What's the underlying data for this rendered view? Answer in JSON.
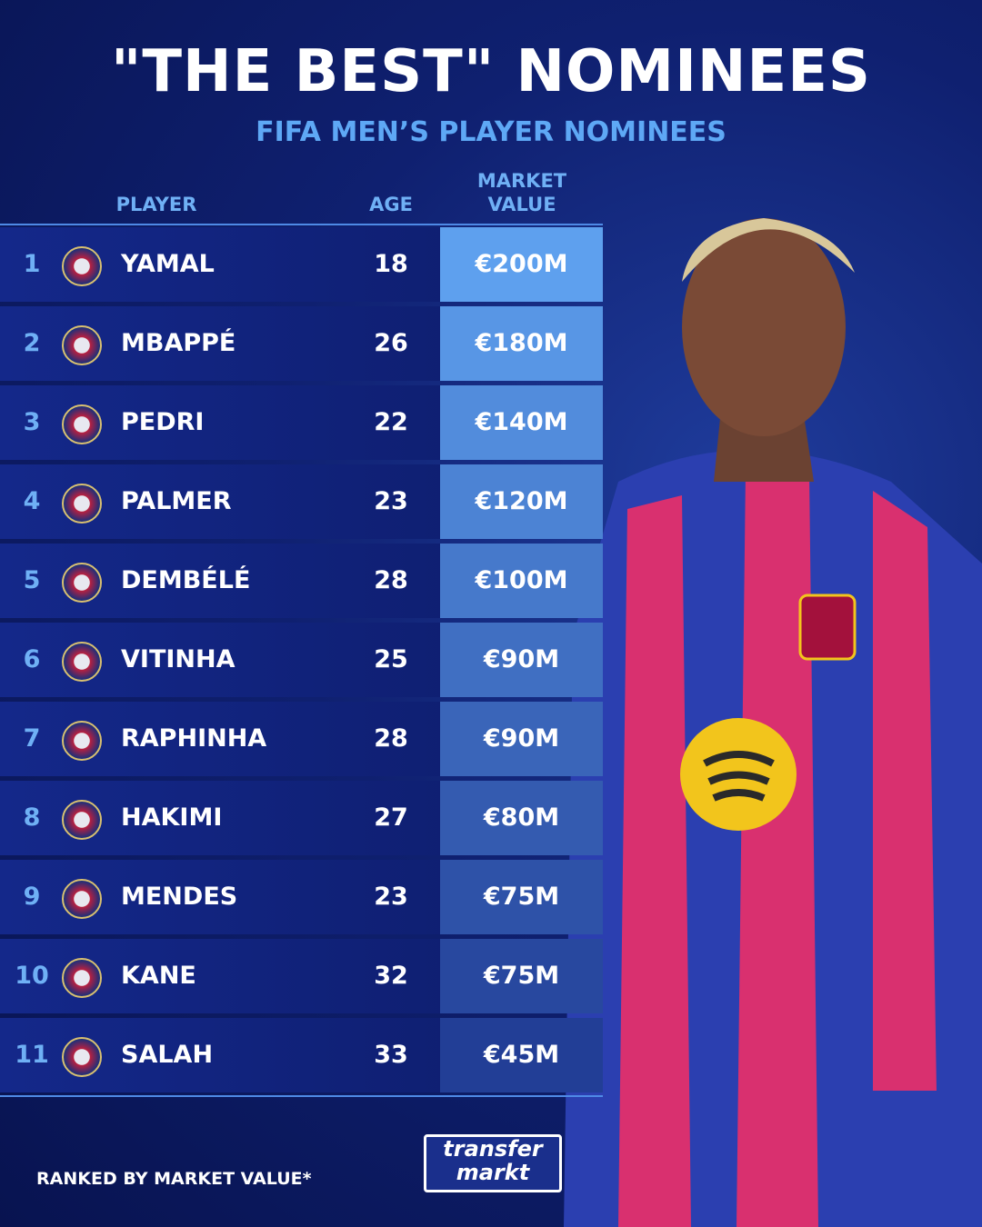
{
  "header": {
    "title": "\"THE BEST\" NOMINEES",
    "subtitle": "FIFA MEN’S PLAYER NOMINEES"
  },
  "table": {
    "columns": [
      "PLAYER",
      "AGE",
      "MARKET VALUE"
    ],
    "rows": [
      [
        "1",
        "YAMAL",
        "18",
        "€200M"
      ],
      [
        "2",
        "MBAPPÉ",
        "26",
        "€180M"
      ],
      [
        "3",
        "PEDRI",
        "22",
        "€140M"
      ],
      [
        "4",
        "PALMER",
        "23",
        "€120M"
      ],
      [
        "5",
        "DEMBÉLÉ",
        "28",
        "€100M"
      ],
      [
        "6",
        "VITINHA",
        "25",
        "€90M"
      ],
      [
        "7",
        "RAPHINHA",
        "28",
        "€90M"
      ],
      [
        "8",
        "HAKIMI",
        "27",
        "€80M"
      ],
      [
        "9",
        "MENDES",
        "23",
        "€75M"
      ],
      [
        "10",
        "KANE",
        "32",
        "€75M"
      ],
      [
        "11",
        "SALAH",
        "33",
        "€45M"
      ]
    ]
  },
  "footer": {
    "note": "RANKED BY MARKET VALUE*",
    "logo": [
      "transfer",
      "markt"
    ]
  }
}
